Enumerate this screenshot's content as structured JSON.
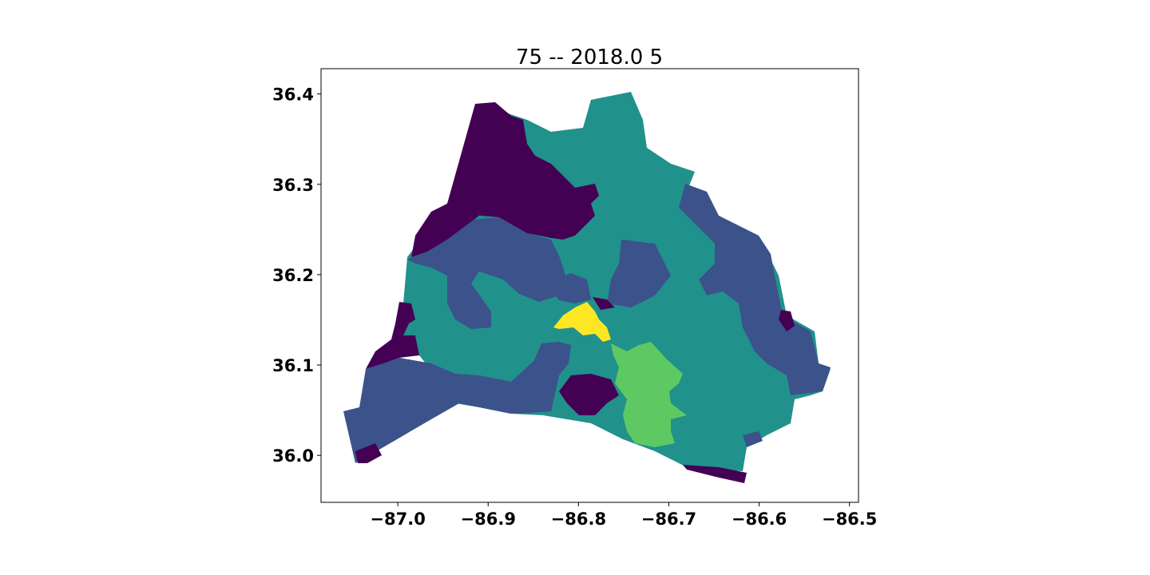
{
  "chart_data": {
    "type": "choropleth",
    "title": "75 -- 2018.0 5",
    "xlabel": "",
    "ylabel": "",
    "x_ticks": [
      -87.0,
      -86.9,
      -86.8,
      -86.7,
      -86.6,
      -86.5
    ],
    "y_ticks": [
      36.0,
      36.1,
      36.2,
      36.3,
      36.4
    ],
    "x_tick_labels": [
      "−87.0",
      "−86.9",
      "−86.8",
      "−86.7",
      "−86.6",
      "−86.5"
    ],
    "y_tick_labels": [
      "36.0",
      "36.1",
      "36.2",
      "36.3",
      "36.4"
    ],
    "xlim": [
      -87.085,
      -86.49
    ],
    "ylim": [
      35.948,
      36.428
    ],
    "colormap": "viridis",
    "class_colors": {
      "class_0": "#440154",
      "class_1": "#3b528b",
      "class_2": "#21918c",
      "class_3": "#5ec962",
      "class_4": "#fde725"
    },
    "grid": false,
    "legend": "none"
  }
}
